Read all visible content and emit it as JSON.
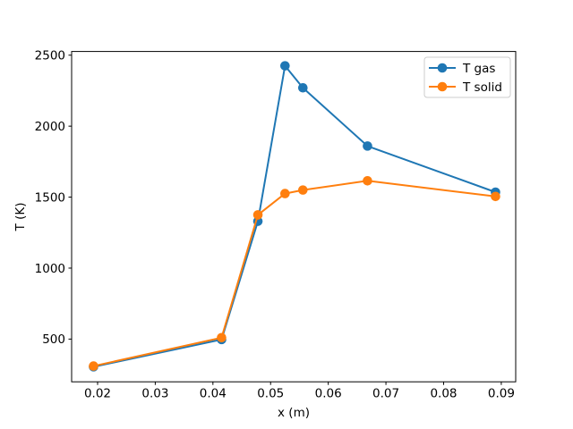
{
  "figure": {
    "background": "#ffffff",
    "text_color": "#000000",
    "spine_color": "#000000"
  },
  "chart_data": {
    "type": "line",
    "title": "",
    "xlabel": "x (m)",
    "ylabel": "T (K)",
    "x": [
      0.0193,
      0.0415,
      0.0478,
      0.0525,
      0.0556,
      0.0668,
      0.089
    ],
    "series": [
      {
        "name": "T gas",
        "color": "#1f77b4",
        "marker": "circle",
        "values": [
          305,
          497,
          1330,
          2425,
          2270,
          1860,
          1535
        ]
      },
      {
        "name": "T solid",
        "color": "#ff7f0e",
        "marker": "circle",
        "values": [
          310,
          510,
          1375,
          1525,
          1550,
          1615,
          1505
        ]
      }
    ],
    "xlim": [
      0.0155,
      0.0925
    ],
    "ylim": [
      199,
      2526
    ],
    "xticks": [
      0.02,
      0.03,
      0.04,
      0.05,
      0.06,
      0.07,
      0.08,
      0.09
    ],
    "xtick_labels": [
      "0.02",
      "0.03",
      "0.04",
      "0.05",
      "0.06",
      "0.07",
      "0.08",
      "0.09"
    ],
    "yticks": [
      500,
      1000,
      1500,
      2000,
      2500
    ],
    "ytick_labels": [
      "500",
      "1000",
      "1500",
      "2000",
      "2500"
    ],
    "grid": false,
    "legend": {
      "position": "upper right",
      "entries": [
        "T gas",
        "T solid"
      ],
      "face_color": "#ffffff",
      "edge_color": "#cccccc"
    }
  }
}
